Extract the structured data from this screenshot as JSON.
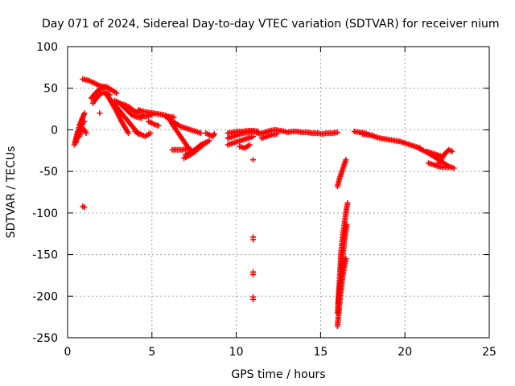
{
  "chart_data": {
    "type": "scatter",
    "title": "Day 071 of 2024, Sidereal Day-to-day VTEC variation (SDTVAR) for receiver nium",
    "xlabel": "GPS time / hours",
    "ylabel": "SDTVAR / TECUs",
    "xlim": [
      0,
      25
    ],
    "ylim": [
      -250,
      100
    ],
    "xticks": [
      0,
      5,
      10,
      15,
      20,
      25
    ],
    "yticks": [
      -250,
      -200,
      -150,
      -100,
      -50,
      0,
      50,
      100
    ],
    "grid": true,
    "marker": "plus",
    "color": "#ff0000",
    "series": [
      {
        "name": "SDTVAR",
        "segments": [
          [
            [
              0.4,
              -18
            ],
            [
              0.5,
              -10
            ],
            [
              0.6,
              -2
            ],
            [
              0.7,
              5
            ],
            [
              0.8,
              10
            ],
            [
              0.9,
              15
            ],
            [
              1.0,
              20
            ]
          ],
          [
            [
              0.5,
              -15
            ],
            [
              0.6,
              -5
            ],
            [
              0.7,
              0
            ],
            [
              0.8,
              4
            ],
            [
              0.9,
              8
            ],
            [
              1.0,
              10
            ]
          ],
          [
            [
              0.7,
              -8
            ],
            [
              0.8,
              -2
            ],
            [
              0.9,
              2
            ],
            [
              1.0,
              0
            ],
            [
              1.1,
              -4
            ]
          ],
          [
            [
              0.9,
              61
            ],
            [
              1.1,
              60
            ],
            [
              1.3,
              59
            ],
            [
              1.5,
              57
            ],
            [
              1.7,
              55
            ],
            [
              1.9,
              53
            ],
            [
              2.1,
              52
            ],
            [
              2.3,
              51
            ],
            [
              2.5,
              49
            ],
            [
              2.7,
              47
            ],
            [
              2.9,
              44
            ]
          ],
          [
            [
              1.4,
              38
            ],
            [
              1.6,
              43
            ],
            [
              1.8,
              47
            ],
            [
              2.0,
              50
            ],
            [
              2.2,
              52
            ],
            [
              2.4,
              51
            ]
          ],
          [
            [
              1.5,
              32
            ],
            [
              1.7,
              38
            ],
            [
              1.9,
              42
            ],
            [
              2.1,
              45
            ],
            [
              2.3,
              44
            ],
            [
              2.5,
              42
            ]
          ],
          [
            [
              1.9,
              20
            ]
          ],
          [
            [
              2.2,
              45
            ],
            [
              2.4,
              40
            ],
            [
              2.6,
              35
            ],
            [
              2.8,
              30
            ],
            [
              3.0,
              25
            ],
            [
              3.2,
              20
            ],
            [
              3.4,
              15
            ],
            [
              3.6,
              10
            ],
            [
              3.8,
              5
            ],
            [
              4.0,
              0
            ],
            [
              4.2,
              -5
            ]
          ],
          [
            [
              2.4,
              40
            ],
            [
              2.6,
              33
            ],
            [
              2.8,
              26
            ],
            [
              3.0,
              18
            ],
            [
              3.2,
              10
            ],
            [
              3.4,
              3
            ],
            [
              3.6,
              -4
            ]
          ],
          [
            [
              2.8,
              35
            ],
            [
              3.0,
              33
            ],
            [
              3.2,
              31
            ],
            [
              3.4,
              30
            ],
            [
              3.6,
              28
            ],
            [
              3.8,
              25
            ],
            [
              4.0,
              22
            ],
            [
              4.2,
              20
            ]
          ],
          [
            [
              3.2,
              30
            ],
            [
              3.4,
              26
            ],
            [
              3.6,
              22
            ],
            [
              3.8,
              18
            ],
            [
              4.0,
              16
            ],
            [
              4.2,
              15
            ],
            [
              4.4,
              14
            ]
          ],
          [
            [
              4.0,
              -2
            ],
            [
              4.3,
              -5
            ],
            [
              4.6,
              -8
            ],
            [
              4.9,
              -4
            ]
          ],
          [
            [
              4.2,
              24
            ],
            [
              4.5,
              22
            ],
            [
              4.8,
              21
            ],
            [
              5.1,
              20
            ],
            [
              5.4,
              19
            ],
            [
              5.7,
              18
            ],
            [
              6.0,
              16
            ],
            [
              6.3,
              15
            ]
          ],
          [
            [
              4.4,
              18
            ],
            [
              4.6,
              16
            ],
            [
              4.8,
              17
            ],
            [
              5.0,
              18
            ]
          ],
          [
            [
              4.8,
              10
            ],
            [
              5.0,
              8
            ],
            [
              5.2,
              6
            ],
            [
              5.4,
              5
            ]
          ],
          [
            [
              5.8,
              16
            ],
            [
              6.1,
              12
            ],
            [
              6.4,
              8
            ],
            [
              6.7,
              4
            ],
            [
              7.0,
              2
            ],
            [
              7.3,
              0
            ],
            [
              7.6,
              -2
            ],
            [
              7.9,
              -4
            ]
          ],
          [
            [
              6.1,
              10
            ],
            [
              6.3,
              4
            ],
            [
              6.5,
              -2
            ],
            [
              6.7,
              -8
            ],
            [
              6.9,
              -14
            ],
            [
              7.1,
              -20
            ],
            [
              7.3,
              -24
            ]
          ],
          [
            [
              6.2,
              -24
            ],
            [
              6.5,
              -24
            ],
            [
              6.8,
              -24
            ],
            [
              7.1,
              -23
            ]
          ],
          [
            [
              6.9,
              -34
            ],
            [
              7.2,
              -31
            ],
            [
              7.5,
              -27
            ],
            [
              7.8,
              -22
            ],
            [
              8.1,
              -17
            ],
            [
              8.4,
              -13
            ]
          ],
          [
            [
              7.0,
              -30
            ],
            [
              7.3,
              -27
            ],
            [
              7.6,
              -23
            ],
            [
              7.9,
              -18
            ],
            [
              8.2,
              -15
            ]
          ],
          [
            [
              8.2,
              -4
            ],
            [
              8.4,
              -6
            ],
            [
              8.6,
              -8
            ],
            [
              8.7,
              -5
            ]
          ],
          [
            [
              9.5,
              -10
            ],
            [
              9.8,
              -8
            ],
            [
              10.1,
              -6
            ],
            [
              10.4,
              -4
            ],
            [
              10.7,
              -3
            ],
            [
              11.0,
              -2
            ],
            [
              11.3,
              -4
            ]
          ],
          [
            [
              9.5,
              -4
            ],
            [
              9.8,
              -3
            ],
            [
              10.1,
              -2
            ],
            [
              10.4,
              -2
            ],
            [
              10.7,
              -1
            ],
            [
              11.0,
              -1
            ],
            [
              11.3,
              -2
            ]
          ],
          [
            [
              9.5,
              -18
            ],
            [
              9.8,
              -16
            ],
            [
              10.1,
              -14
            ],
            [
              10.4,
              -12
            ],
            [
              10.7,
              -10
            ],
            [
              11.0,
              -8
            ]
          ],
          [
            [
              10.2,
              -20
            ],
            [
              10.5,
              -22
            ],
            [
              10.8,
              -18
            ]
          ],
          [
            [
              11.0,
              -36
            ]
          ],
          [
            [
              11.4,
              -5
            ],
            [
              11.7,
              -3
            ],
            [
              12.0,
              -1
            ],
            [
              12.3,
              0
            ],
            [
              12.6,
              -1
            ],
            [
              12.9,
              -2
            ]
          ],
          [
            [
              11.5,
              -10
            ],
            [
              11.8,
              -8
            ],
            [
              12.1,
              -6
            ],
            [
              12.4,
              -5
            ]
          ],
          [
            [
              13.0,
              -3
            ],
            [
              13.3,
              -2
            ],
            [
              13.6,
              -2
            ],
            [
              13.9,
              -3
            ],
            [
              14.2,
              -3
            ],
            [
              14.5,
              -4
            ],
            [
              14.8,
              -4
            ],
            [
              15.1,
              -5
            ],
            [
              15.4,
              -4
            ],
            [
              15.7,
              -4
            ],
            [
              16.0,
              -3
            ]
          ],
          [
            [
              16.0,
              -68
            ],
            [
              16.1,
              -60
            ],
            [
              16.2,
              -54
            ],
            [
              16.3,
              -48
            ],
            [
              16.4,
              -42
            ],
            [
              16.5,
              -36
            ]
          ],
          [
            [
              16.0,
              -220
            ],
            [
              16.1,
              -190
            ],
            [
              16.15,
              -170
            ],
            [
              16.2,
              -150
            ],
            [
              16.3,
              -130
            ],
            [
              16.4,
              -115
            ],
            [
              16.5,
              -100
            ],
            [
              16.6,
              -88
            ]
          ],
          [
            [
              16.0,
              -236
            ],
            [
              16.1,
              -215
            ],
            [
              16.2,
              -195
            ],
            [
              16.3,
              -178
            ],
            [
              16.4,
              -165
            ],
            [
              16.5,
              -155
            ]
          ],
          [
            [
              16.05,
              -208
            ],
            [
              16.15,
              -185
            ],
            [
              16.25,
              -162
            ],
            [
              16.35,
              -145
            ],
            [
              16.45,
              -128
            ],
            [
              16.55,
              -114
            ]
          ],
          [
            [
              17.0,
              -2
            ],
            [
              17.3,
              -3
            ],
            [
              17.6,
              -4
            ],
            [
              17.9,
              -6
            ],
            [
              18.2,
              -8
            ],
            [
              18.5,
              -10
            ],
            [
              18.8,
              -11
            ],
            [
              19.1,
              -12
            ],
            [
              19.4,
              -13
            ],
            [
              19.7,
              -14
            ],
            [
              20.0,
              -16
            ],
            [
              20.3,
              -18
            ],
            [
              20.6,
              -20
            ],
            [
              20.9,
              -22
            ]
          ],
          [
            [
              17.5,
              -5
            ],
            [
              17.8,
              -6
            ],
            [
              18.1,
              -7
            ]
          ],
          [
            [
              20.8,
              -22
            ],
            [
              21.1,
              -25
            ],
            [
              21.4,
              -28
            ],
            [
              21.7,
              -32
            ],
            [
              22.0,
              -36
            ],
            [
              22.3,
              -40
            ],
            [
              22.6,
              -44
            ],
            [
              22.9,
              -46
            ]
          ],
          [
            [
              21.4,
              -40
            ],
            [
              21.7,
              -42
            ],
            [
              22.0,
              -44
            ],
            [
              22.3,
              -45
            ],
            [
              22.6,
              -45
            ]
          ],
          [
            [
              21.3,
              -26
            ],
            [
              21.6,
              -28
            ],
            [
              21.9,
              -30
            ],
            [
              22.2,
              -32
            ]
          ],
          [
            [
              22.0,
              -40
            ],
            [
              22.2,
              -34
            ],
            [
              22.4,
              -28
            ],
            [
              22.6,
              -24
            ],
            [
              22.8,
              -26
            ]
          ],
          [
            [
              0.9,
              -92
            ],
            [
              1.0,
              -93
            ]
          ],
          [
            [
              11.0,
              -129
            ],
            [
              11.0,
              -132
            ]
          ],
          [
            [
              11.0,
              -171
            ],
            [
              11.0,
              -174
            ]
          ],
          [
            [
              11.0,
              -201
            ],
            [
              11.0,
              -204
            ]
          ]
        ]
      }
    ]
  }
}
